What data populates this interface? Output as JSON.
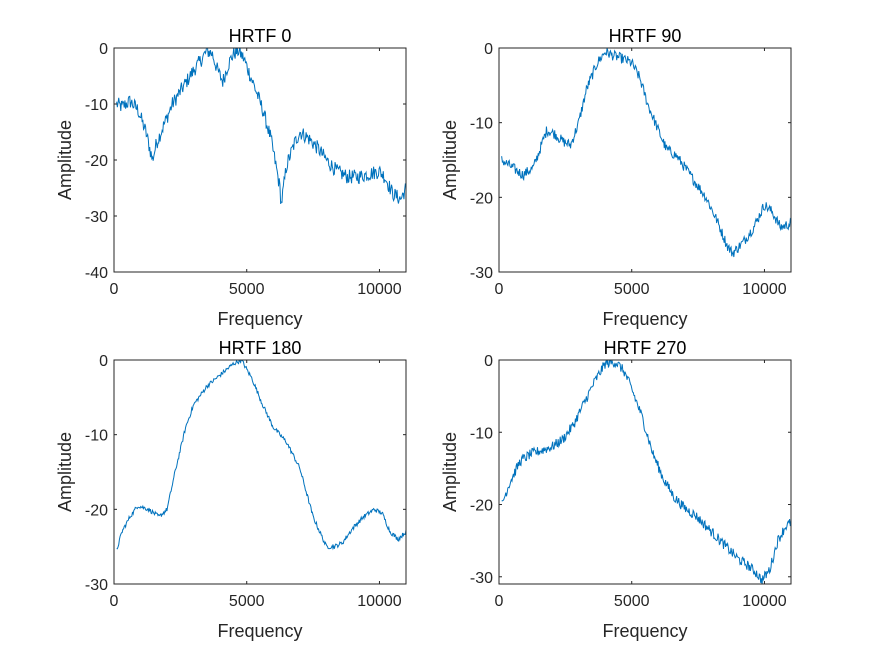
{
  "chart_data": [
    {
      "type": "line",
      "title": "HRTF 0",
      "xlabel": "Frequency",
      "ylabel": "Amplitude",
      "xlim": [
        0,
        11000
      ],
      "ylim": [
        -40,
        0
      ],
      "xticks": [
        0,
        5000,
        10000
      ],
      "yticks": [
        0,
        -10,
        -20,
        -30,
        -40
      ],
      "color": "#0072BD",
      "noise": 1.3,
      "series": [
        {
          "x": [
            100,
            300,
            600,
            900,
            1200,
            1450,
            1600,
            1900,
            2200,
            2600,
            3000,
            3300,
            3500,
            3700,
            3900,
            4100,
            4300,
            4500,
            4700,
            4900,
            5100,
            5300,
            5600,
            5900,
            6100,
            6250,
            6300,
            6500,
            6800,
            7000,
            7300,
            7700,
            8000,
            8400,
            8800,
            9200,
            9600,
            10000,
            10200,
            10500,
            10800,
            11000
          ],
          "y": [
            -10,
            -10.5,
            -9.5,
            -11,
            -15,
            -20,
            -17,
            -13.5,
            -10,
            -7,
            -4,
            -2,
            -0.5,
            -1,
            -4,
            -6,
            -3,
            -1,
            -0.5,
            -2,
            -4.5,
            -7,
            -11,
            -16,
            -21,
            -25,
            -28,
            -21,
            -17,
            -15,
            -16,
            -18,
            -20,
            -22,
            -23,
            -23,
            -22.5,
            -22,
            -23,
            -26,
            -27,
            -25
          ]
        }
      ]
    },
    {
      "type": "line",
      "title": "HRTF 90",
      "xlabel": "Frequency",
      "ylabel": "Amplitude",
      "xlim": [
        0,
        11000
      ],
      "ylim": [
        -30,
        0
      ],
      "xticks": [
        0,
        5000,
        10000
      ],
      "yticks": [
        0,
        -10,
        -20,
        -30
      ],
      "color": "#0072BD",
      "noise": 0.7,
      "series": [
        {
          "x": [
            100,
            500,
            900,
            1300,
            1600,
            1800,
            2100,
            2400,
            2700,
            3000,
            3300,
            3700,
            4000,
            4300,
            4700,
            5000,
            5300,
            5600,
            6000,
            6300,
            6700,
            7000,
            7400,
            7800,
            8200,
            8600,
            8800,
            9200,
            9600,
            10000,
            10300,
            10600,
            11000
          ],
          "y": [
            -15,
            -16,
            -17,
            -16,
            -13,
            -11,
            -11.5,
            -12.5,
            -13,
            -10,
            -5.5,
            -2,
            -0.5,
            -1,
            -1.5,
            -2,
            -4,
            -7.5,
            -11,
            -13.5,
            -14.5,
            -16,
            -18,
            -20,
            -23,
            -26.5,
            -27.5,
            -26,
            -24,
            -21,
            -22,
            -24,
            -23.5
          ]
        }
      ]
    },
    {
      "type": "line",
      "title": "HRTF 180",
      "xlabel": "Frequency",
      "ylabel": "Amplitude",
      "xlim": [
        0,
        11000
      ],
      "ylim": [
        -30,
        0
      ],
      "xticks": [
        0,
        5000,
        10000
      ],
      "yticks": [
        0,
        -10,
        -20,
        -30
      ],
      "color": "#0072BD",
      "noise": 0.3,
      "series": [
        {
          "x": [
            100,
            300,
            600,
            900,
            1300,
            1700,
            2000,
            2300,
            2700,
            3000,
            3500,
            4000,
            4500,
            4800,
            5200,
            5600,
            6000,
            6500,
            7000,
            7500,
            8000,
            8300,
            8600,
            9000,
            9400,
            9800,
            10100,
            10400,
            10700,
            11000
          ],
          "y": [
            -25.5,
            -23,
            -21,
            -19.5,
            -20,
            -21,
            -20,
            -15,
            -9,
            -6,
            -3.5,
            -2,
            -0.5,
            0,
            -2.5,
            -6,
            -9,
            -11,
            -14.5,
            -21,
            -25,
            -25,
            -24.5,
            -22.5,
            -21,
            -20,
            -20.5,
            -23,
            -24,
            -23
          ]
        }
      ]
    },
    {
      "type": "line",
      "title": "HRTF 270",
      "xlabel": "Frequency",
      "ylabel": "Amplitude",
      "xlim": [
        0,
        11000
      ],
      "ylim": [
        -31,
        0
      ],
      "xticks": [
        0,
        5000,
        10000
      ],
      "yticks": [
        0,
        -10,
        -20,
        -30
      ],
      "color": "#0072BD",
      "noise": 0.7,
      "series": [
        {
          "x": [
            100,
            400,
            800,
            1200,
            1600,
            2000,
            2400,
            2800,
            3200,
            3600,
            4000,
            4400,
            4700,
            5000,
            5400,
            5800,
            6200,
            6600,
            7000,
            7400,
            7800,
            8200,
            8600,
            9000,
            9400,
            9700,
            9900,
            10200,
            10500,
            10800,
            11000
          ],
          "y": [
            -20,
            -17,
            -14,
            -13,
            -12.5,
            -12,
            -11,
            -9,
            -6,
            -3,
            -0.5,
            -0.3,
            -1.5,
            -4,
            -8,
            -13,
            -16.5,
            -19,
            -20.5,
            -21.5,
            -23,
            -24.5,
            -26,
            -27.5,
            -28.5,
            -29.5,
            -30.5,
            -29,
            -25,
            -23,
            -22.5
          ]
        }
      ]
    }
  ]
}
